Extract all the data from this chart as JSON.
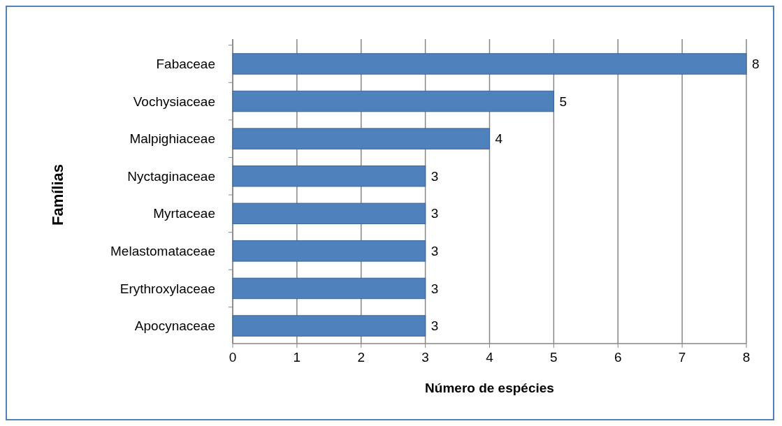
{
  "chart_data": {
    "type": "bar",
    "orientation": "horizontal",
    "xlabel": "Número de espécies",
    "ylabel": "Famílias",
    "categories": [
      "Fabaceae",
      "Vochysiaceae",
      "Malpighiaceae",
      "Nyctaginaceae",
      "Myrtaceae",
      "Melastomataceae",
      "Erythroxylaceae",
      "Apocynaceae"
    ],
    "values": [
      8,
      5,
      4,
      3,
      3,
      3,
      3,
      3
    ],
    "color": "#4f81bd",
    "xlim": [
      0,
      8
    ],
    "xticks": [
      0,
      1,
      2,
      3,
      4,
      5,
      6,
      7,
      8
    ],
    "grid": "x",
    "data_labels": true
  }
}
